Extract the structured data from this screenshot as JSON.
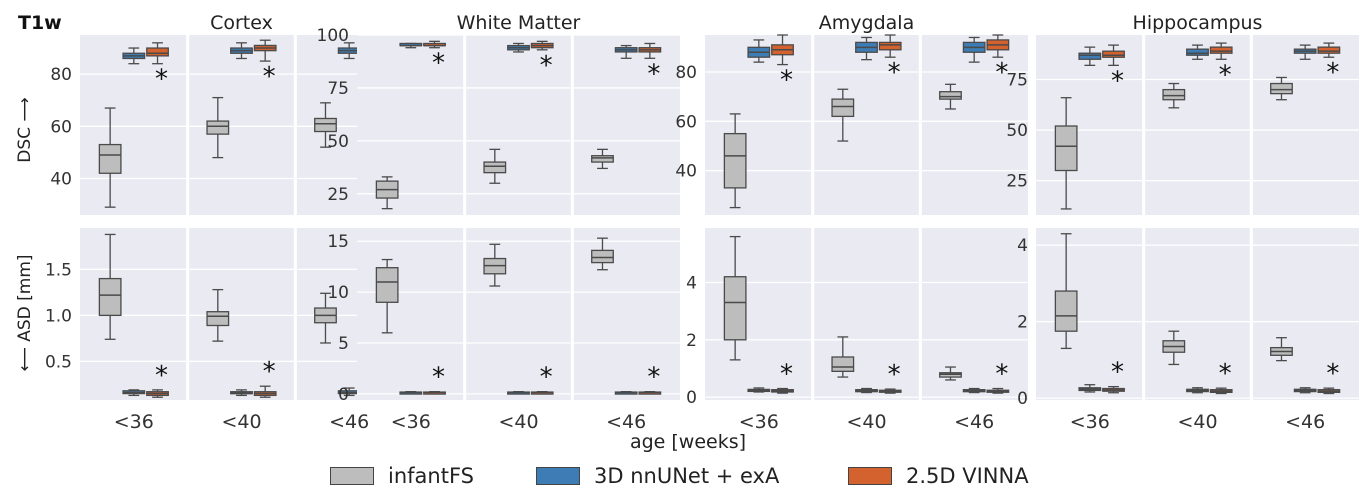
{
  "figure": {
    "modality_label": "T1w",
    "xlabel": "age [weeks]",
    "row_ylabels": [
      "DSC ⟶",
      "⟵ ASD [mm]"
    ],
    "marker": "*"
  },
  "legend": [
    {
      "label": "infantFS",
      "color": "#bdbdbd"
    },
    {
      "label": "3D nnUNet + exA",
      "color": "#3d7cb4"
    },
    {
      "label": "2.5D VINNA",
      "color": "#d4622e"
    }
  ],
  "chart_data": [
    {
      "type": "box",
      "title": "Cortex",
      "row": "DSC",
      "ylim": [
        26,
        95
      ],
      "yticks": [
        "40",
        "60",
        "80"
      ],
      "ytick_values": [
        40,
        60,
        80
      ],
      "categories": [
        "<36",
        "<40",
        "<46"
      ],
      "series": [
        {
          "name": "infantFS",
          "boxes": [
            [
              29,
              42,
              49,
              53,
              67
            ],
            [
              48,
              57,
              60,
              62,
              71
            ],
            [
              52,
              58,
              61,
              63,
              69
            ]
          ]
        },
        {
          "name": "3D nnUNet + exA",
          "boxes": [
            [
              84,
              86,
              87,
              88,
              90
            ],
            [
              86,
              88,
              89,
              90,
              92
            ],
            [
              86,
              88,
              89,
              90,
              92
            ]
          ]
        },
        {
          "name": "2.5D VINNA",
          "boxes": [
            [
              84,
              87,
              88,
              90,
              92
            ],
            [
              85,
              89,
              90,
              91,
              93
            ],
            [
              85,
              89,
              90,
              91,
              93
            ]
          ]
        }
      ],
      "significance": [
        true,
        true,
        true
      ]
    },
    {
      "type": "box",
      "title": "White Matter",
      "row": "DSC",
      "ylim": [
        15,
        100
      ],
      "yticks": [
        "25",
        "50",
        "75",
        "100"
      ],
      "ytick_values": [
        25,
        50,
        75,
        100
      ],
      "categories": [
        "<36",
        "<40",
        "<46"
      ],
      "series": [
        {
          "name": "infantFS",
          "boxes": [
            [
              18,
              23,
              27,
              31,
              33
            ],
            [
              30,
              35,
              38,
              40,
              46
            ],
            [
              37,
              40,
              42,
              43,
              46
            ]
          ]
        },
        {
          "name": "3D nnUNet + exA",
          "boxes": [
            [
              94,
              95,
              95,
              96,
              96
            ],
            [
              92,
              93,
              94,
              95,
              96
            ],
            [
              89,
              92,
              93,
              94,
              95
            ]
          ]
        },
        {
          "name": "2.5D VINNA",
          "boxes": [
            [
              94,
              95,
              95,
              96,
              97
            ],
            [
              93,
              94,
              95,
              96,
              97
            ],
            [
              89,
              92,
              93,
              94,
              96
            ]
          ]
        }
      ],
      "significance": [
        true,
        true,
        true
      ]
    },
    {
      "type": "box",
      "title": "Amygdala",
      "row": "DSC",
      "ylim": [
        22,
        95
      ],
      "yticks": [
        "40",
        "60",
        "80"
      ],
      "ytick_values": [
        40,
        60,
        80
      ],
      "categories": [
        "<36",
        "<40",
        "<46"
      ],
      "series": [
        {
          "name": "infantFS",
          "boxes": [
            [
              25,
              33,
              46,
              55,
              63
            ],
            [
              52,
              62,
              66,
              69,
              73
            ],
            [
              65,
              69,
              70,
              72,
              75
            ]
          ]
        },
        {
          "name": "3D nnUNet + exA",
          "boxes": [
            [
              84,
              86,
              88,
              90,
              93
            ],
            [
              85,
              88,
              90,
              92,
              94
            ],
            [
              84,
              88,
              90,
              92,
              94
            ]
          ]
        },
        {
          "name": "2.5D VINNA",
          "boxes": [
            [
              83,
              87,
              89,
              91,
              95
            ],
            [
              86,
              89,
              91,
              92,
              95
            ],
            [
              86,
              89,
              91,
              93,
              95
            ]
          ]
        }
      ],
      "significance": [
        true,
        true,
        true
      ]
    },
    {
      "type": "box",
      "title": "Hippocampus",
      "row": "DSC",
      "ylim": [
        8,
        97
      ],
      "yticks": [
        "25",
        "50",
        "75"
      ],
      "ytick_values": [
        25,
        50,
        75
      ],
      "categories": [
        "<36",
        "<40",
        "<46"
      ],
      "series": [
        {
          "name": "infantFS",
          "boxes": [
            [
              11,
              30,
              42,
              52,
              66
            ],
            [
              61,
              65,
              67,
              70,
              73
            ],
            [
              65,
              68,
              70,
              73,
              76
            ]
          ]
        },
        {
          "name": "3D nnUNet + exA",
          "boxes": [
            [
              82,
              85,
              87,
              88,
              91
            ],
            [
              85,
              87,
              88,
              90,
              92
            ],
            [
              85,
              88,
              89,
              90,
              92
            ]
          ]
        },
        {
          "name": "2.5D VINNA",
          "boxes": [
            [
              82,
              86,
              87,
              89,
              92
            ],
            [
              85,
              88,
              89,
              91,
              93
            ],
            [
              86,
              88,
              89,
              91,
              93
            ]
          ]
        }
      ],
      "significance": [
        true,
        true,
        true
      ]
    },
    {
      "type": "box",
      "title": "",
      "row": "ASD",
      "ylim": [
        0.08,
        1.95
      ],
      "yticks": [
        "0.5",
        "1.0",
        "1.5"
      ],
      "ytick_values": [
        0.5,
        1.0,
        1.5
      ],
      "categories": [
        "<36",
        "<40",
        "<46"
      ],
      "series": [
        {
          "name": "infantFS",
          "boxes": [
            [
              0.74,
              1.0,
              1.22,
              1.4,
              1.88
            ],
            [
              0.72,
              0.89,
              0.99,
              1.04,
              1.28
            ],
            [
              0.7,
              0.92,
              1.0,
              1.08,
              1.24
            ]
          ]
        },
        {
          "name": "3D nnUNet + exA",
          "boxes": [
            [
              0.13,
              0.15,
              0.16,
              0.18,
              0.19
            ],
            [
              0.13,
              0.15,
              0.16,
              0.17,
              0.19
            ],
            [
              0.13,
              0.15,
              0.16,
              0.18,
              0.21
            ]
          ]
        },
        {
          "name": "2.5D VINNA",
          "boxes": [
            [
              0.11,
              0.13,
              0.15,
              0.17,
              0.19
            ],
            [
              0.11,
              0.13,
              0.15,
              0.17,
              0.23
            ],
            [
              0.11,
              0.13,
              0.15,
              0.17,
              0.21
            ]
          ]
        }
      ],
      "significance": [
        true,
        true,
        true
      ]
    },
    {
      "type": "box",
      "title": "",
      "row": "ASD",
      "ylim": [
        -0.6,
        16.3
      ],
      "yticks": [
        "0",
        "5",
        "10",
        "15"
      ],
      "ytick_values": [
        0,
        5,
        10,
        15
      ],
      "categories": [
        "<36",
        "<40",
        "<46"
      ],
      "series": [
        {
          "name": "infantFS",
          "boxes": [
            [
              6.0,
              9.0,
              11.0,
              12.4,
              13.2
            ],
            [
              10.6,
              11.8,
              12.6,
              13.3,
              14.7
            ],
            [
              12.2,
              12.9,
              13.4,
              14.1,
              15.3
            ]
          ]
        },
        {
          "name": "3D nnUNet + exA",
          "boxes": [
            [
              0.1,
              0.12,
              0.15,
              0.18,
              0.22
            ],
            [
              0.1,
              0.12,
              0.15,
              0.18,
              0.22
            ],
            [
              0.1,
              0.12,
              0.15,
              0.18,
              0.22
            ]
          ]
        },
        {
          "name": "2.5D VINNA",
          "boxes": [
            [
              0.1,
              0.12,
              0.15,
              0.18,
              0.22
            ],
            [
              0.1,
              0.12,
              0.15,
              0.18,
              0.22
            ],
            [
              0.1,
              0.12,
              0.15,
              0.18,
              0.22
            ]
          ]
        }
      ],
      "significance": [
        true,
        true,
        true
      ]
    },
    {
      "type": "box",
      "title": "",
      "row": "ASD",
      "ylim": [
        -0.1,
        5.9
      ],
      "yticks": [
        "0",
        "2",
        "4"
      ],
      "ytick_values": [
        0,
        2,
        4
      ],
      "categories": [
        "<36",
        "<40",
        "<46"
      ],
      "series": [
        {
          "name": "infantFS",
          "boxes": [
            [
              1.3,
              2.0,
              3.3,
              4.2,
              5.6
            ],
            [
              0.7,
              0.9,
              1.05,
              1.4,
              2.1
            ],
            [
              0.6,
              0.7,
              0.8,
              0.85,
              1.05
            ]
          ]
        },
        {
          "name": "3D nnUNet + exA",
          "boxes": [
            [
              0.18,
              0.2,
              0.24,
              0.27,
              0.32
            ],
            [
              0.16,
              0.19,
              0.22,
              0.26,
              0.3
            ],
            [
              0.16,
              0.19,
              0.22,
              0.26,
              0.3
            ]
          ]
        },
        {
          "name": "2.5D VINNA",
          "boxes": [
            [
              0.14,
              0.18,
              0.22,
              0.26,
              0.3
            ],
            [
              0.14,
              0.17,
              0.2,
              0.24,
              0.28
            ],
            [
              0.14,
              0.17,
              0.2,
              0.24,
              0.3
            ]
          ]
        }
      ],
      "significance": [
        true,
        true,
        true
      ]
    },
    {
      "type": "box",
      "title": "",
      "row": "ASD",
      "ylim": [
        -0.05,
        4.45
      ],
      "yticks": [
        "0",
        "2",
        "4"
      ],
      "ytick_values": [
        0,
        2,
        4
      ],
      "categories": [
        "<36",
        "<40",
        "<46"
      ],
      "series": [
        {
          "name": "infantFS",
          "boxes": [
            [
              1.3,
              1.75,
              2.15,
              2.8,
              4.3
            ],
            [
              0.88,
              1.2,
              1.35,
              1.5,
              1.75
            ],
            [
              0.98,
              1.12,
              1.22,
              1.32,
              1.58
            ]
          ]
        },
        {
          "name": "3D nnUNet + exA",
          "boxes": [
            [
              0.16,
              0.2,
              0.23,
              0.27,
              0.35
            ],
            [
              0.14,
              0.17,
              0.2,
              0.23,
              0.27
            ],
            [
              0.14,
              0.17,
              0.2,
              0.23,
              0.27
            ]
          ]
        },
        {
          "name": "2.5D VINNA",
          "boxes": [
            [
              0.14,
              0.18,
              0.21,
              0.25,
              0.3
            ],
            [
              0.12,
              0.15,
              0.18,
              0.22,
              0.26
            ],
            [
              0.12,
              0.15,
              0.18,
              0.22,
              0.26
            ]
          ]
        }
      ],
      "significance": [
        true,
        true,
        true
      ]
    }
  ]
}
